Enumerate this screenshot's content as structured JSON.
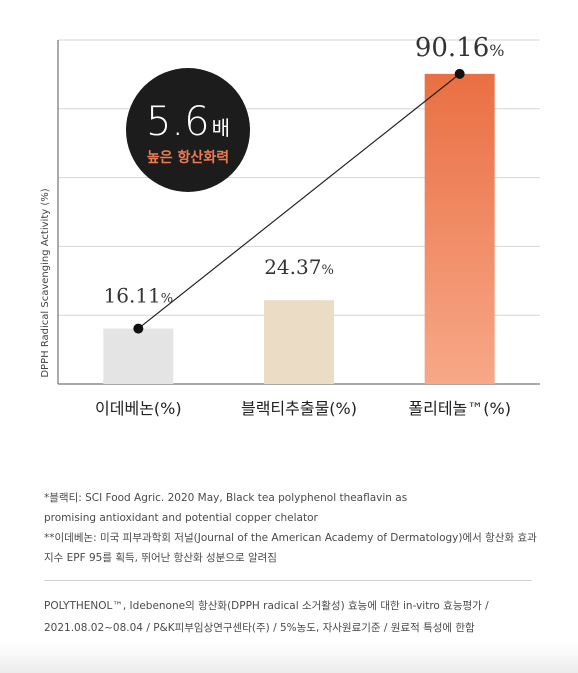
{
  "chart_data": {
    "type": "bar",
    "ylabel": "DPPH Radical Scavenging Activity (%)",
    "ylim": [
      0,
      100
    ],
    "grid": true,
    "categories": [
      "이데베논(%)",
      "블랙티추출물(%)",
      "폴리테놀™(%)"
    ],
    "values": [
      16.11,
      24.37,
      90.16
    ],
    "value_labels": [
      {
        "number": "16.11",
        "unit": "%"
      },
      {
        "number": "24.37",
        "unit": "%"
      },
      {
        "number": "90.16",
        "unit": "%"
      }
    ],
    "colors": [
      "#e4e4e4",
      "#ebdcc6",
      "#ee7a52"
    ],
    "annotation": {
      "main": "5.6",
      "unit": "배",
      "sub": "높은 항산화력"
    }
  },
  "footnotes": [
    "*블랙티: SCI Food Agric. 2020 May, Black tea polyphenol theaflavin as",
    "promising antioxidant and potential copper chelator",
    "**이데베논: 미국 피부과학회 저널(Journal of the American Academy of Dermatology)에서 항산화 효과",
    "지수 EPF 95를 획득, 뛰어난 항산화 성분으로 알려짐"
  ],
  "source": [
    "POLYTHENOL™, Idebenone의 항산화(DPPH radical 소거활성) 효능에 대한 in-vitro 효능평가 /",
    "2021.08.02~08.04 / P&K피부임상연구센타(주) / 5%농도, 자사원료기준 / 원료적 특성에 한함"
  ]
}
